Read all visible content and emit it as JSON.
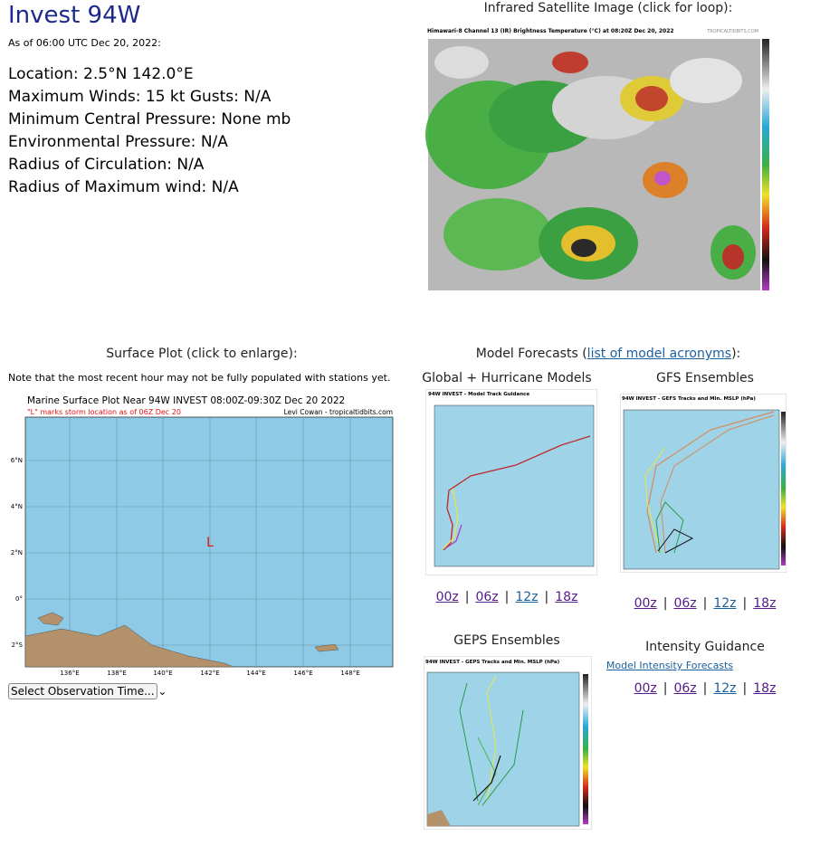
{
  "header": {
    "title": "Invest 94W",
    "as_of": "As of 06:00 UTC Dec 20, 2022:",
    "info": [
      "Location: 2.5°N 142.0°E",
      "Maximum Winds: 15 kt  Gusts: N/A",
      "Minimum Central Pressure: None mb",
      "Environmental Pressure: N/A",
      "Radius of Circulation: N/A",
      "Radius of Maximum wind: N/A"
    ]
  },
  "satellite": {
    "heading": "Infrared Satellite Image (click for loop):",
    "image_title": "Himawari-8 Channel 13 (IR) Brightness Temperature (°C) at 08:20Z Dec 20, 2022",
    "watermark": "TROPICALTIDBITS.COM"
  },
  "surface": {
    "heading": "Surface Plot (click to enlarge):",
    "note": "Note that the most recent hour may not be fully populated with stations yet.",
    "image_title": "Marine Surface Plot Near 94W INVEST 08:00Z-09:30Z Dec 20 2022",
    "image_subtitle": "\"L\" marks storm location as of 06Z Dec 20",
    "credit": "Levi Cowan - tropicaltidbits.com",
    "storm_marker": "L",
    "lat_labels": [
      "6°N",
      "4°N",
      "2°N",
      "0°",
      "2°S"
    ],
    "lon_labels": [
      "136°E",
      "138°E",
      "140°E",
      "142°E",
      "144°E",
      "146°E",
      "148°E"
    ],
    "select": "Select Observation Time..."
  },
  "models": {
    "heading_start": "Model Forecasts (",
    "heading_link": "list of model acronyms",
    "heading_end": "):",
    "separator": "|",
    "global": {
      "title": "Global + Hurricane Models",
      "image_title": "94W INVEST - Model Track Guidance",
      "links": [
        "00z",
        "06z",
        "12z",
        "18z"
      ]
    },
    "gfs": {
      "title": "GFS Ensembles",
      "image_title": "94W INVEST - GEFS Tracks and Min. MSLP (hPa)",
      "links": [
        "00z",
        "06z",
        "12z",
        "18z"
      ]
    },
    "geps": {
      "title": "GEPS Ensembles",
      "image_title": "94W INVEST - GEPS Tracks and Min. MSLP (hPa)"
    },
    "intensity": {
      "title": "Intensity Guidance",
      "link": "Model Intensity Forecasts",
      "links": [
        "00z",
        "06z",
        "12z",
        "18z"
      ]
    }
  }
}
